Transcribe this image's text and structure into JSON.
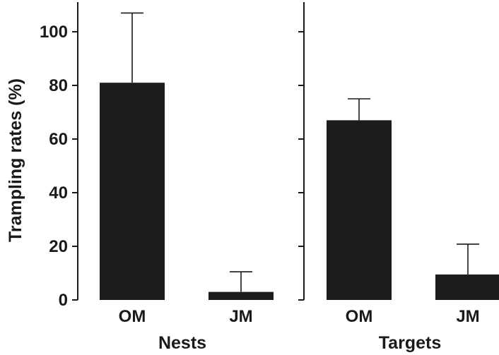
{
  "chart_data": {
    "type": "bar",
    "ylabel": "Trampling rates (%)",
    "ylim": [
      0,
      110
    ],
    "yticks": [
      0,
      20,
      40,
      60,
      80,
      100
    ],
    "grid": false,
    "panels": [
      {
        "xlabel": "Nests",
        "categories": [
          "OM",
          "JM"
        ],
        "values": [
          81,
          3
        ],
        "errors": [
          26,
          7.5
        ]
      },
      {
        "xlabel": "Targets",
        "categories": [
          "OM",
          "JM"
        ],
        "values": [
          67,
          9.5
        ],
        "errors": [
          8,
          11.3
        ]
      }
    ],
    "colors": {
      "bar": "#1c1c1c",
      "axis": "#1a1a1a"
    }
  }
}
